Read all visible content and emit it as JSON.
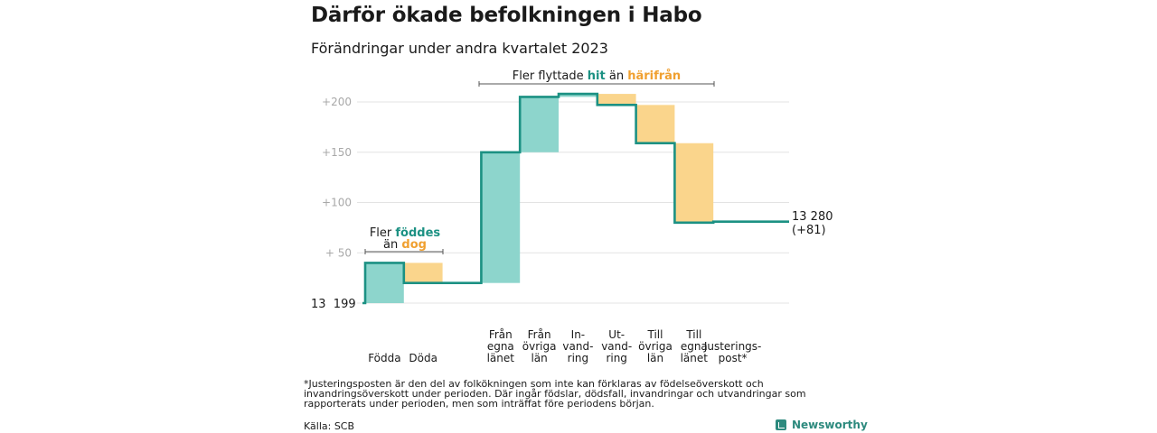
{
  "title": "Därför ökade befolkningen i Habo",
  "subtitle": "Förändringar under andra kvartalet 2023",
  "colors": {
    "gain": "#8dd5cc",
    "loss": "#fad58c",
    "line": "#1c9183",
    "grid": "#e3e3e3",
    "teal_text": "#1c9183",
    "orange_text": "#f0a030"
  },
  "annotations": {
    "births": {
      "line1_prefix": "Fler ",
      "line1_highlight": "föddes",
      "line2_prefix": "än ",
      "line2_highlight": "dog"
    },
    "migration": {
      "prefix": "Fler flyttade ",
      "highlight1": "hit",
      "middle": " än ",
      "highlight2": "härifrån"
    }
  },
  "end_label": {
    "value": "13 280",
    "change": "(+81)"
  },
  "start_label": "13  199",
  "footnote": "*Justeringsposten är den del av folkökningen som inte kan förklaras av födelseöverskott och invandringsöverskott under perioden. Där ingår födslar, dödsfall, invandringar och utvandringar som rapporterats under perioden, men som inträffat före periodens början.",
  "source": "Källa: SCB",
  "brand": "Newsworthy",
  "chart_data": {
    "type": "waterfall",
    "base": 13199,
    "end_value": 13280,
    "total_change": 81,
    "y_tick_labels": [
      "+  50",
      "+100",
      "+150",
      "+200"
    ],
    "y_ticks": [
      50,
      100,
      150,
      200
    ],
    "ylim": [
      0,
      220
    ],
    "steps": [
      {
        "label": [
          "Födda"
        ],
        "change": 40,
        "kind": "gain"
      },
      {
        "label": [
          "Döda"
        ],
        "change": -20,
        "kind": "loss"
      },
      {
        "label": [],
        "change": 0,
        "kind": "gap"
      },
      {
        "label": [
          "Från",
          "egna",
          "länet"
        ],
        "change": 130,
        "kind": "gain"
      },
      {
        "label": [
          "Från",
          "övriga",
          "län"
        ],
        "change": 55,
        "kind": "gain"
      },
      {
        "label": [
          "In-",
          "vand-",
          "ring"
        ],
        "change": 3,
        "kind": "gain"
      },
      {
        "label": [
          "Ut-",
          "vand-",
          "ring"
        ],
        "change": -11,
        "kind": "loss"
      },
      {
        "label": [
          "Till",
          "övriga",
          "län"
        ],
        "change": -38,
        "kind": "loss"
      },
      {
        "label": [
          "Till",
          "egna",
          "länet"
        ],
        "change": -79,
        "kind": "loss"
      },
      {
        "label": [
          "Justerings-",
          "post*"
        ],
        "change": 1,
        "kind": "adjust"
      }
    ]
  }
}
